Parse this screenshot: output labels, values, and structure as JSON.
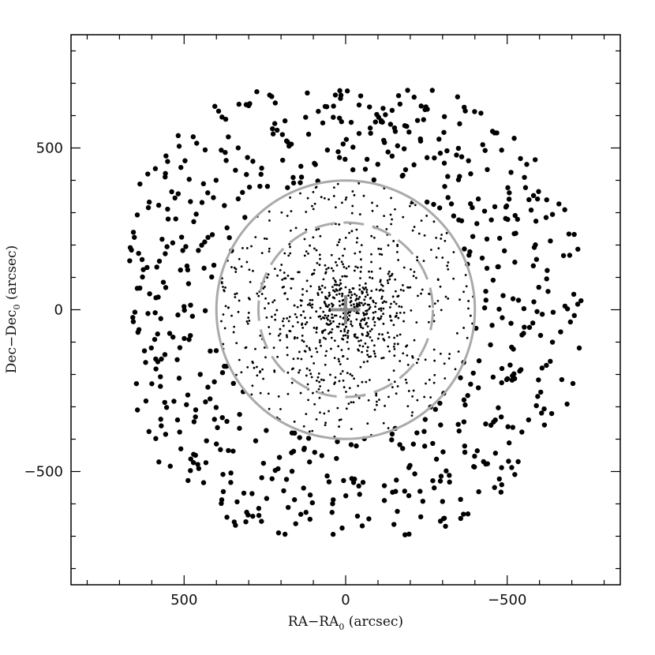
{
  "chart_data": {
    "type": "scatter",
    "title": "",
    "xlabel": "RA−RA",
    "xlabel_sub": "0",
    "xlabel_unit": " (arcsec)",
    "ylabel": "Dec−Dec",
    "ylabel_sub": "0",
    "ylabel_unit": " (arcsec)",
    "xlim": [
      850,
      -850
    ],
    "ylim": [
      -850,
      850
    ],
    "x_inverted": true,
    "xticks": [
      500,
      0,
      -500
    ],
    "xtick_labels": [
      "500",
      "0",
      "−500"
    ],
    "yticks": [
      500,
      0,
      -500
    ],
    "ytick_labels": [
      "500",
      "0",
      "−500"
    ],
    "grid": false,
    "center_marker": {
      "x": 0,
      "y": 0,
      "size_arcsec": 45,
      "color": "#888888"
    },
    "circles": [
      {
        "name": "",
        "radius": 400,
        "style": "solid",
        "color": "#aaaaaa"
      },
      {
        "name": "",
        "radius": 270,
        "style": "dashed",
        "color": "#aaaaaa"
      }
    ],
    "series": [
      {
        "name": "",
        "marker": "large-dot",
        "color": "#000000",
        "distribution": "annulus",
        "r_min": 395,
        "r_max": 750,
        "x_range": [
          -760,
          670
        ],
        "y_range": [
          -700,
          680
        ],
        "count": 620
      },
      {
        "name": "",
        "marker": "small-dot",
        "color": "#000000",
        "distribution": "disk",
        "r_max": 400,
        "core_fraction": 0.4,
        "core_scale": 80,
        "count": 900
      }
    ]
  }
}
